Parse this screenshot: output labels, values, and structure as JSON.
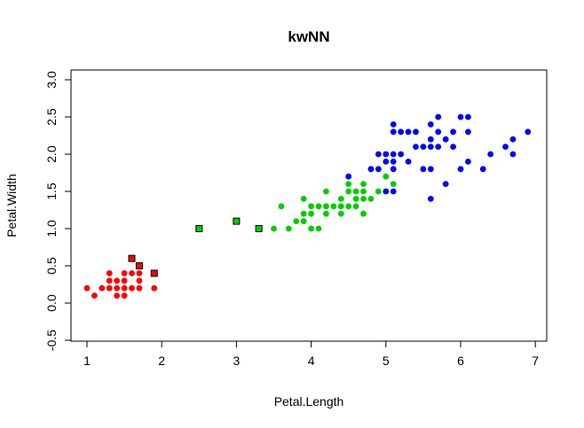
{
  "chart_data": {
    "type": "scatter",
    "title": "kwNN",
    "xlabel": "Petal.Length",
    "ylabel": "Petal.Width",
    "xlim": [
      0.8,
      7.2
    ],
    "ylim": [
      -0.5,
      3.0
    ],
    "xticks": [
      1,
      2,
      3,
      4,
      5,
      6,
      7
    ],
    "yticks": [
      -0.5,
      0.0,
      0.5,
      1.0,
      1.5,
      2.0,
      2.5,
      3.0
    ],
    "grid": false,
    "series": [
      {
        "color": "#ff0000",
        "marker": "circle",
        "points": [
          [
            1.0,
            0.2
          ],
          [
            1.1,
            0.1
          ],
          [
            1.2,
            0.2
          ],
          [
            1.3,
            0.2
          ],
          [
            1.3,
            0.3
          ],
          [
            1.3,
            0.4
          ],
          [
            1.4,
            0.1
          ],
          [
            1.4,
            0.2
          ],
          [
            1.4,
            0.3
          ],
          [
            1.5,
            0.1
          ],
          [
            1.5,
            0.2
          ],
          [
            1.5,
            0.3
          ],
          [
            1.5,
            0.4
          ],
          [
            1.6,
            0.2
          ],
          [
            1.6,
            0.4
          ],
          [
            1.7,
            0.2
          ],
          [
            1.7,
            0.3
          ],
          [
            1.7,
            0.4
          ],
          [
            1.9,
            0.2
          ]
        ]
      },
      {
        "color": "#00cd00",
        "marker": "circle",
        "points": [
          [
            3.5,
            1.0
          ],
          [
            3.6,
            1.3
          ],
          [
            3.7,
            1.0
          ],
          [
            3.8,
            1.1
          ],
          [
            3.9,
            1.1
          ],
          [
            3.9,
            1.2
          ],
          [
            3.9,
            1.4
          ],
          [
            4.0,
            1.0
          ],
          [
            4.0,
            1.2
          ],
          [
            4.0,
            1.3
          ],
          [
            4.1,
            1.0
          ],
          [
            4.1,
            1.3
          ],
          [
            4.2,
            1.2
          ],
          [
            4.2,
            1.3
          ],
          [
            4.2,
            1.5
          ],
          [
            4.3,
            1.3
          ],
          [
            4.4,
            1.2
          ],
          [
            4.4,
            1.3
          ],
          [
            4.4,
            1.4
          ],
          [
            4.5,
            1.3
          ],
          [
            4.5,
            1.5
          ],
          [
            4.5,
            1.6
          ],
          [
            4.6,
            1.3
          ],
          [
            4.6,
            1.4
          ],
          [
            4.6,
            1.5
          ],
          [
            4.7,
            1.2
          ],
          [
            4.7,
            1.4
          ],
          [
            4.7,
            1.5
          ],
          [
            4.7,
            1.6
          ],
          [
            4.8,
            1.4
          ],
          [
            4.8,
            1.8
          ],
          [
            4.9,
            1.5
          ],
          [
            5.0,
            1.7
          ],
          [
            5.1,
            1.6
          ]
        ]
      },
      {
        "color": "#0000ff",
        "marker": "circle",
        "points": [
          [
            4.5,
            1.7
          ],
          [
            4.8,
            1.8
          ],
          [
            4.9,
            1.8
          ],
          [
            4.9,
            2.0
          ],
          [
            5.0,
            1.5
          ],
          [
            5.0,
            1.9
          ],
          [
            5.0,
            2.0
          ],
          [
            5.1,
            1.5
          ],
          [
            5.1,
            1.8
          ],
          [
            5.1,
            1.9
          ],
          [
            5.1,
            2.0
          ],
          [
            5.1,
            2.3
          ],
          [
            5.1,
            2.4
          ],
          [
            5.2,
            2.0
          ],
          [
            5.2,
            2.3
          ],
          [
            5.3,
            1.9
          ],
          [
            5.3,
            2.3
          ],
          [
            5.4,
            2.1
          ],
          [
            5.4,
            2.3
          ],
          [
            5.5,
            1.8
          ],
          [
            5.5,
            2.1
          ],
          [
            5.6,
            1.4
          ],
          [
            5.6,
            1.8
          ],
          [
            5.6,
            2.1
          ],
          [
            5.6,
            2.2
          ],
          [
            5.6,
            2.4
          ],
          [
            5.7,
            2.1
          ],
          [
            5.7,
            2.3
          ],
          [
            5.7,
            2.5
          ],
          [
            5.8,
            1.6
          ],
          [
            5.8,
            2.2
          ],
          [
            5.9,
            2.1
          ],
          [
            5.9,
            2.3
          ],
          [
            6.0,
            1.8
          ],
          [
            6.0,
            2.5
          ],
          [
            6.1,
            1.9
          ],
          [
            6.1,
            2.3
          ],
          [
            6.1,
            2.5
          ],
          [
            6.3,
            1.8
          ],
          [
            6.4,
            2.0
          ],
          [
            6.6,
            2.1
          ],
          [
            6.7,
            2.0
          ],
          [
            6.7,
            2.2
          ],
          [
            6.9,
            2.3
          ]
        ]
      },
      {
        "color": "#ff0000",
        "marker": "square",
        "points": [
          [
            1.6,
            0.6
          ],
          [
            1.7,
            0.5
          ],
          [
            1.9,
            0.4
          ]
        ]
      },
      {
        "color": "#00cd00",
        "marker": "square",
        "points": [
          [
            2.5,
            1.0
          ],
          [
            3.0,
            1.1
          ],
          [
            3.3,
            1.0
          ]
        ]
      }
    ]
  }
}
